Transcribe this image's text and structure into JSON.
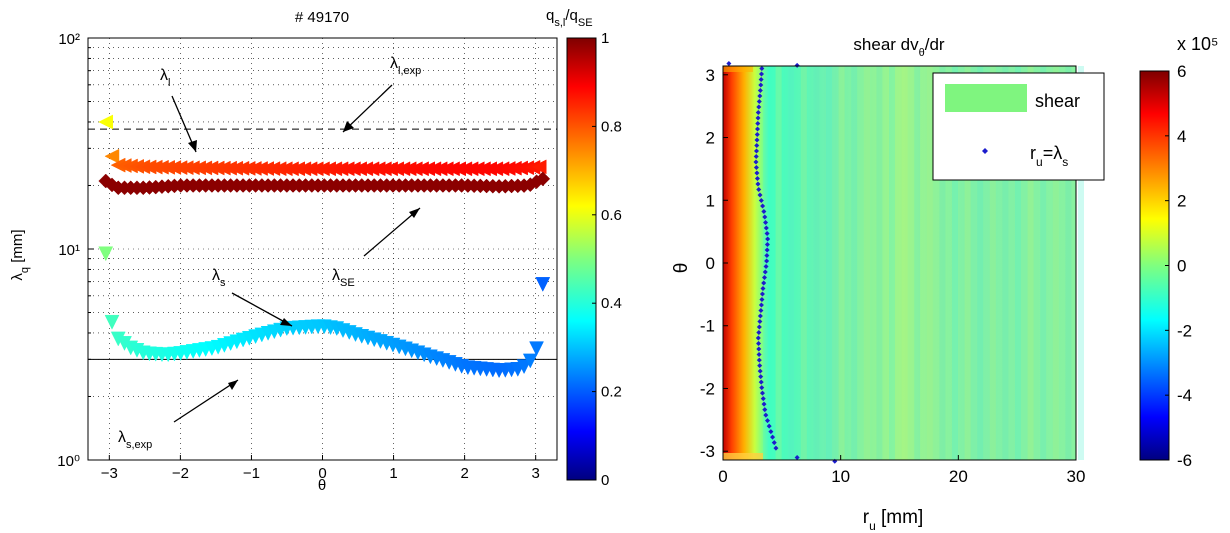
{
  "chart_data": [
    {
      "type": "scatter",
      "title": "# 49170",
      "xlabel": "θ",
      "ylabel": "λq [mm]",
      "xlim": [
        -3.3,
        3.3
      ],
      "ylim": [
        1,
        100
      ],
      "yscale": "log",
      "grid": "dotted",
      "xticks": [
        "−3",
        "−2",
        "−1",
        "0",
        "1",
        "2",
        "3"
      ],
      "yticks": [
        "10⁰",
        "10¹",
        "10²"
      ],
      "colorbar": {
        "label": "qs,l/qSE",
        "range": [
          0,
          1
        ],
        "ticks": [
          "0",
          "0.2",
          "0.4",
          "0.6",
          "0.8",
          "1"
        ],
        "colormap": "jet"
      },
      "reference_lines": [
        {
          "label": "λl,exp",
          "y": 37,
          "style": "dashed"
        },
        {
          "label": "λs,exp",
          "y": 3,
          "style": "solid"
        }
      ],
      "series": [
        {
          "label": "λl",
          "marker": "triangle-left",
          "x": [
            -3.05,
            -3.0,
            -2.9,
            -2.5,
            -2.0,
            -1.5,
            -1.0,
            -0.5,
            0.0,
            0.5,
            1.0,
            1.5,
            2.0,
            2.5,
            2.9,
            3.05
          ],
          "y": [
            40,
            29,
            25,
            24.5,
            24.3,
            24.2,
            24.1,
            24.0,
            24.0,
            24.0,
            24.0,
            24.0,
            24.0,
            24.0,
            24.3,
            24.5
          ],
          "c": [
            0.62,
            0.72,
            0.78,
            0.8,
            0.81,
            0.82,
            0.83,
            0.84,
            0.85,
            0.86,
            0.86,
            0.87,
            0.87,
            0.87,
            0.86,
            0.85
          ]
        },
        {
          "label": "λSE",
          "marker": "diamond",
          "x": [
            -3.05,
            -2.9,
            -2.5,
            -2.0,
            -1.5,
            -1.0,
            -0.5,
            0.0,
            0.5,
            1.0,
            1.5,
            2.0,
            2.5,
            2.9,
            3.1
          ],
          "y": [
            21,
            19.5,
            19.5,
            20,
            20,
            20,
            20,
            20,
            20,
            20,
            20,
            20,
            19.8,
            20,
            21.5
          ],
          "c": [
            1,
            1,
            1,
            1,
            1,
            1,
            1,
            1,
            1,
            1,
            1,
            1,
            1,
            1,
            1
          ]
        },
        {
          "label": "λs",
          "marker": "triangle-down",
          "x": [
            -3.05,
            -3.02,
            -2.98,
            -2.9,
            -2.7,
            -2.5,
            -2.2,
            -2.0,
            -1.5,
            -1.0,
            -0.5,
            0.0,
            0.2,
            0.5,
            1.0,
            1.5,
            2.0,
            2.5,
            2.8,
            2.95,
            3.05,
            3.1
          ],
          "y": [
            9.5,
            6.5,
            4.7,
            3.8,
            3.4,
            3.2,
            3.15,
            3.2,
            3.4,
            3.8,
            4.2,
            4.3,
            4.2,
            3.9,
            3.5,
            3.1,
            2.75,
            2.65,
            2.7,
            3.0,
            3.6,
            6.8
          ],
          "c": [
            0.5,
            0.45,
            0.44,
            0.43,
            0.42,
            0.41,
            0.4,
            0.39,
            0.37,
            0.35,
            0.33,
            0.32,
            0.31,
            0.3,
            0.28,
            0.26,
            0.24,
            0.23,
            0.24,
            0.25,
            0.24,
            0.22
          ]
        }
      ],
      "annotations": [
        "λl",
        "λl,exp",
        "λSE",
        "λs",
        "λs,exp"
      ]
    },
    {
      "type": "heatmap",
      "title": "shear dvθ/dr",
      "xlabel": "ru [mm]",
      "ylabel": "θ",
      "xlim": [
        0,
        30
      ],
      "ylim": [
        -3.14,
        3.14
      ],
      "xticks": [
        "0",
        "10",
        "20",
        "30"
      ],
      "yticks": [
        "3",
        "2",
        "1",
        "0",
        "-1",
        "-2",
        "-3"
      ],
      "colorbar": {
        "range": [
          -6,
          6
        ],
        "multiplier": "x 10⁵",
        "ticks": [
          "6",
          "4",
          "2",
          "0",
          "-2",
          "-4",
          "-6"
        ],
        "colormap": "jet"
      },
      "legend": {
        "position": "top-right",
        "entries": [
          "shear",
          "ru=λs"
        ]
      },
      "profile_description": "strong positive shear (red/orange) for ru < 3 mm, cyan/green elsewhere",
      "overlay_series": {
        "label": "ru=λs",
        "color": "#1c1ccc",
        "x": [
          3.3,
          3.2,
          3.0,
          2.9,
          2.8,
          3.0,
          3.5,
          3.8,
          3.7,
          3.4,
          3.2,
          3.0,
          3.1,
          3.3,
          3.6,
          4.5
        ],
        "y": [
          3.1,
          2.8,
          2.4,
          2.0,
          1.6,
          1.2,
          0.8,
          0.4,
          0.0,
          -0.4,
          -0.8,
          -1.2,
          -1.6,
          -2.0,
          -2.4,
          -2.95
        ]
      },
      "outlier_points": {
        "x": [
          0.5,
          6.3,
          6.3,
          9.5
        ],
        "y": [
          3.18,
          3.15,
          -3.1,
          -3.16
        ]
      }
    }
  ]
}
